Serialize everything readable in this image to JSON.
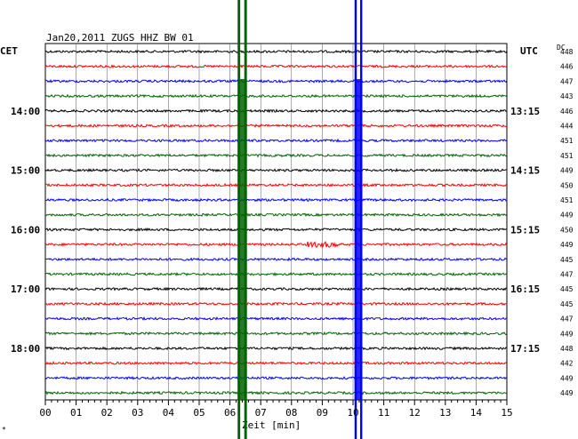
{
  "chart_data": {
    "type": "line",
    "title": "Jan20,2011   ZUGS HHZ BW 01",
    "left_tz": "CET",
    "right_tz": "UTC",
    "dc_label": "DC",
    "xlabel": "Zeit [min]",
    "x_ticks": [
      "00",
      "01",
      "02",
      "03",
      "04",
      "05",
      "06",
      "07",
      "08",
      "09",
      "10",
      "11",
      "12",
      "13",
      "14",
      "15"
    ],
    "xlim": [
      0,
      15
    ],
    "trace_colors": [
      "#000000",
      "#ff0000",
      "#0000ff",
      "#006400"
    ],
    "left_hour_labels": [
      {
        "row": 4,
        "text": "14:00"
      },
      {
        "row": 8,
        "text": "15:00"
      },
      {
        "row": 12,
        "text": "16:00"
      },
      {
        "row": 16,
        "text": "17:00"
      },
      {
        "row": 20,
        "text": "18:00"
      }
    ],
    "right_hour_labels": [
      {
        "row": 4,
        "text": "13:15"
      },
      {
        "row": 8,
        "text": "14:15"
      },
      {
        "row": 12,
        "text": "15:15"
      },
      {
        "row": 16,
        "text": "16:15"
      },
      {
        "row": 20,
        "text": "17:15"
      }
    ],
    "dc_values": [
      "448",
      "446",
      "447",
      "443",
      "446",
      "444",
      "451",
      "451",
      "449",
      "450",
      "451",
      "449",
      "450",
      "449",
      "445",
      "447",
      "445",
      "445",
      "447",
      "449",
      "448",
      "442",
      "449",
      "449"
    ],
    "events": [
      {
        "name": "green-event",
        "x_min": 6.25,
        "x_max": 6.55,
        "color": "#006400"
      },
      {
        "name": "blue-event",
        "x_min": 10.05,
        "x_max": 10.3,
        "color": "#0000ff"
      }
    ],
    "footnote": "*"
  }
}
